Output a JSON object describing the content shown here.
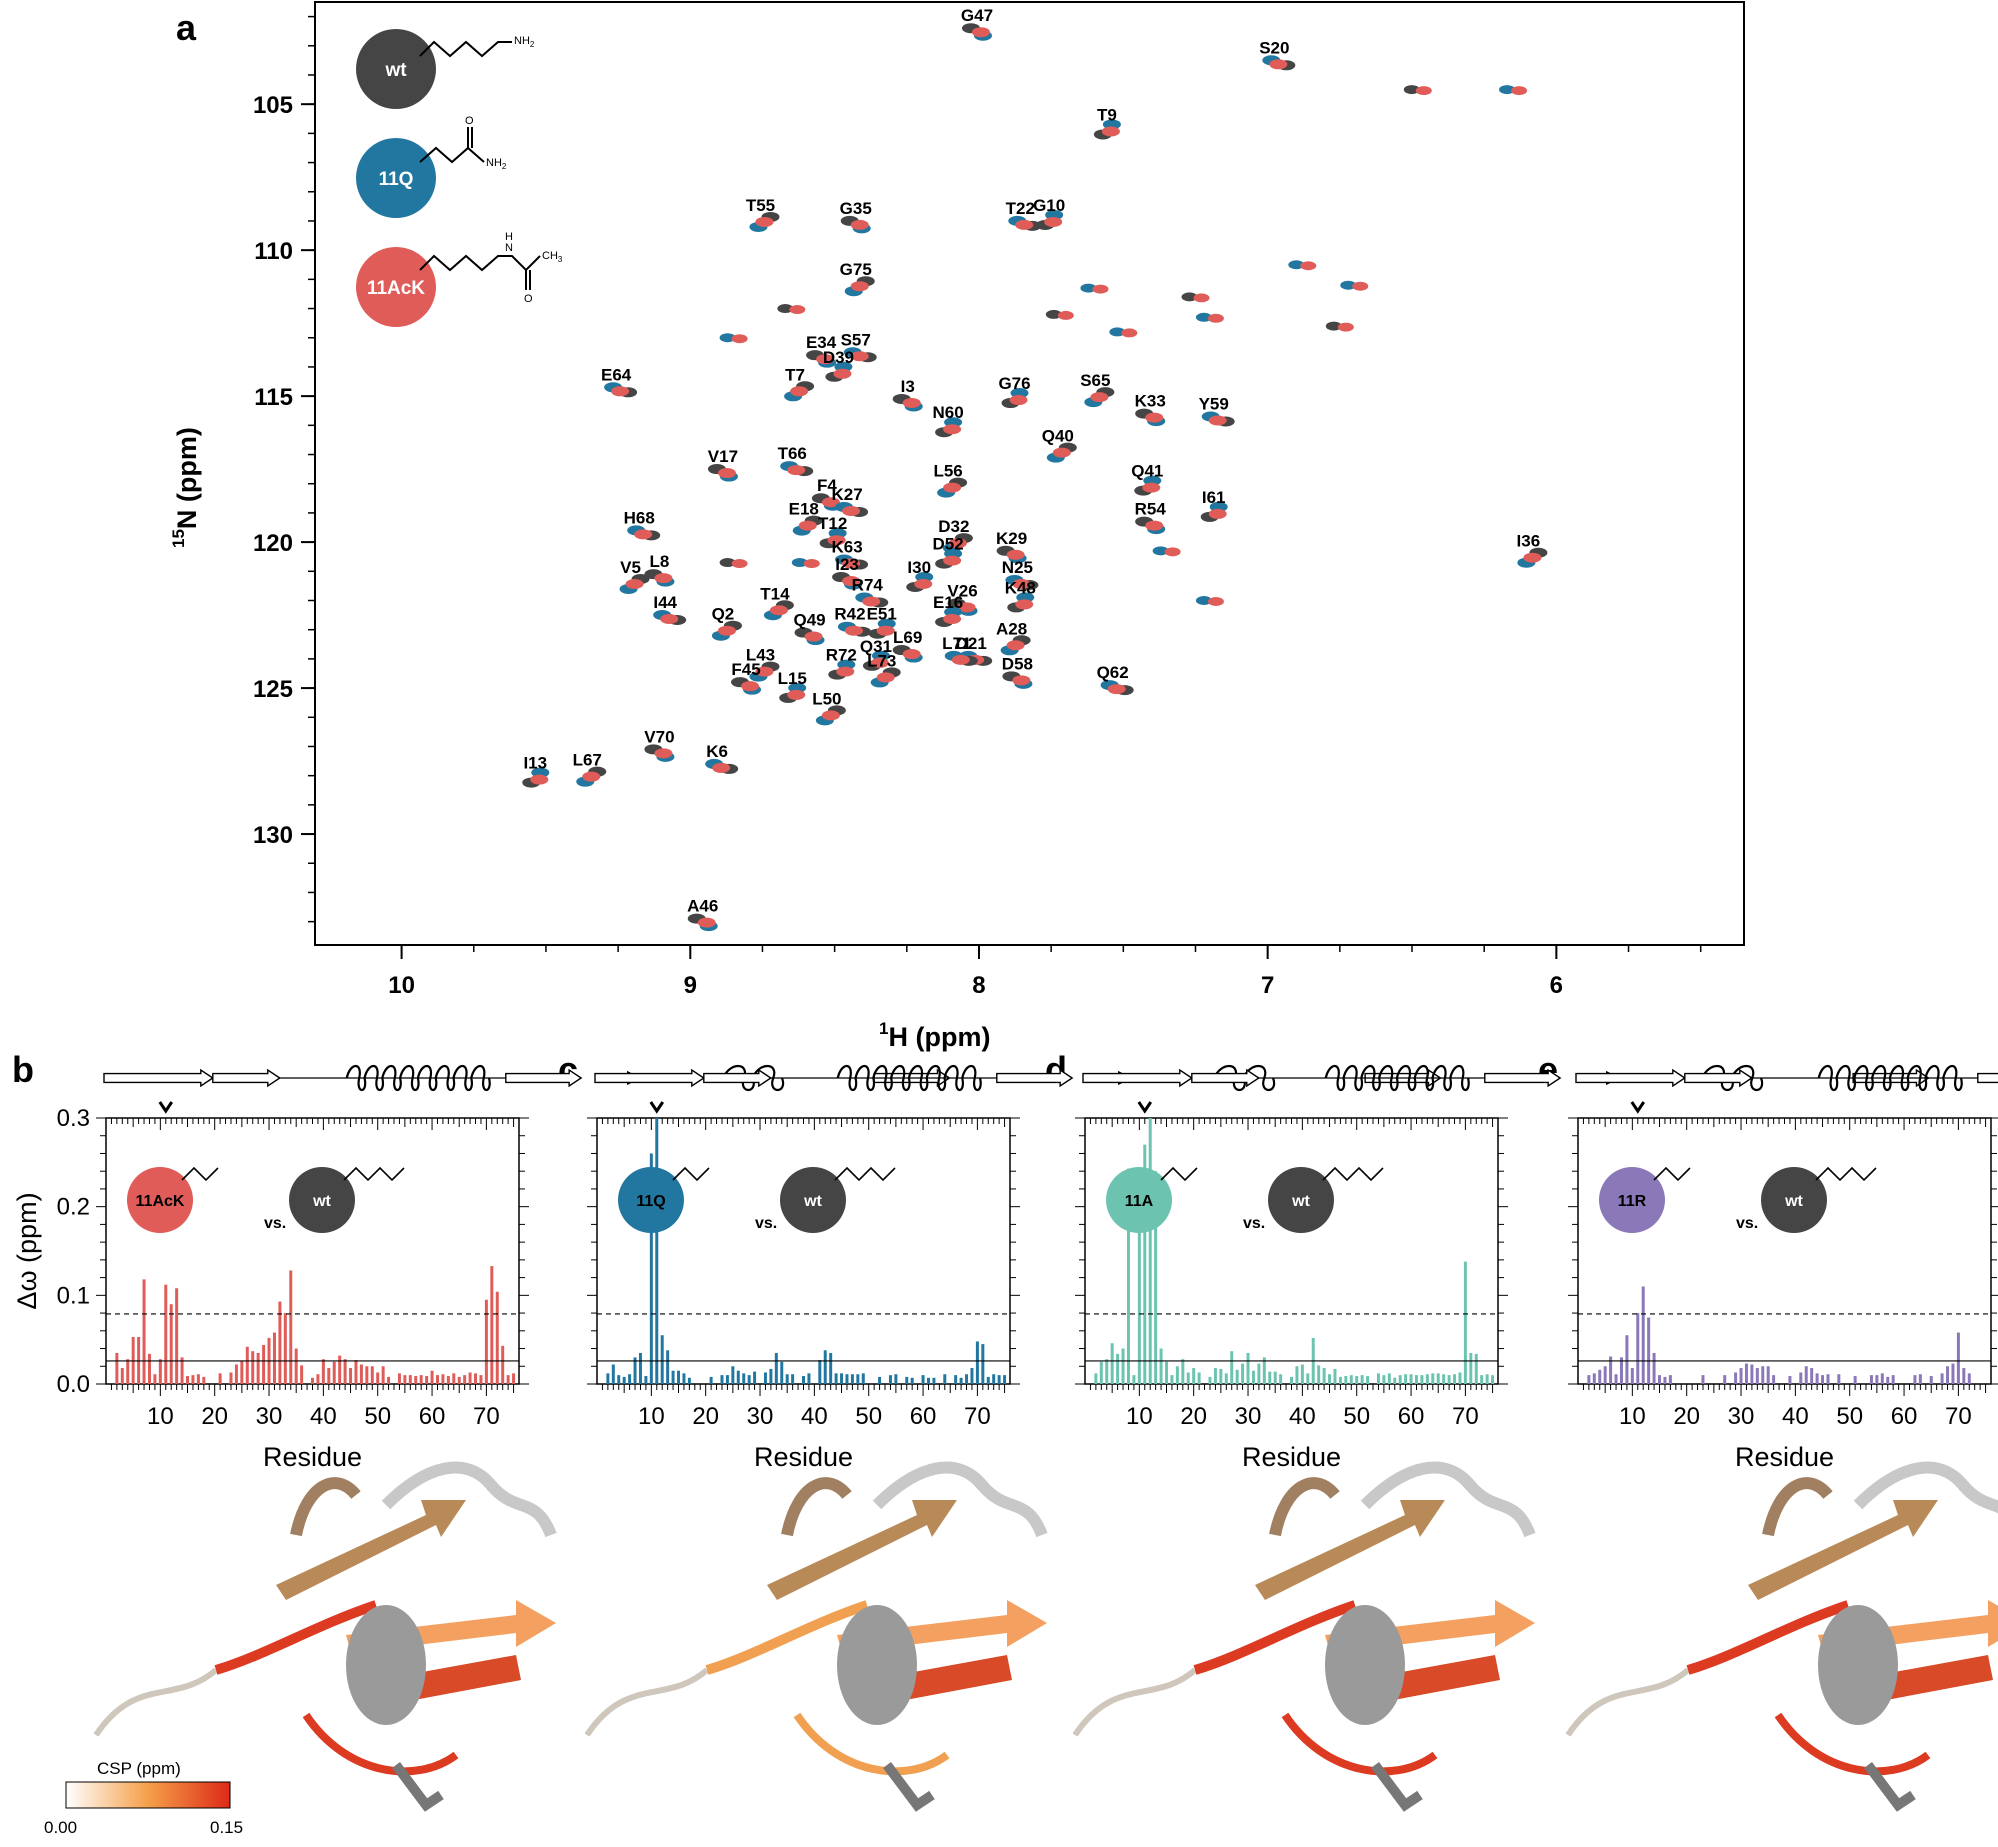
{
  "chart_data": [
    {
      "type": "scatter",
      "panel": "a",
      "xlabel": "1H (ppm)",
      "ylabel": "15N (ppm)",
      "xlim": [
        10.3,
        5.35
      ],
      "ylim": [
        101.5,
        133.8
      ],
      "xticks": [
        "10",
        "9",
        "8",
        "7",
        "6"
      ],
      "yticks": [
        "105",
        "110",
        "115",
        "120",
        "125",
        "130"
      ],
      "series_colors": {
        "wt": "#454545",
        "11Q": "#2277a0",
        "11AcK": "#e05c58"
      },
      "legend": [
        {
          "label": "wt",
          "color": "#454545",
          "struct": "lysine"
        },
        {
          "label": "11Q",
          "color": "#2277a0",
          "struct": "glutamine"
        },
        {
          "label": "11AcK",
          "color": "#e05c58",
          "struct": "acetyl-lysine"
        }
      ],
      "legend_chem": {
        "nh2": "NH",
        "o": "O",
        "h": "H",
        "n": "N",
        "ch3": "CH",
        "two": "2",
        "three": "3"
      },
      "peaks": [
        {
          "label": "G47",
          "h": 8.0,
          "n": 102.5
        },
        {
          "label": "S20",
          "h": 6.97,
          "n": 103.6
        },
        {
          "label": "T9",
          "h": 7.55,
          "n": 105.9
        },
        {
          "label": "T55",
          "h": 8.75,
          "n": 109.0
        },
        {
          "label": "G35",
          "h": 8.42,
          "n": 109.1
        },
        {
          "label": "T22",
          "h": 7.85,
          "n": 109.1
        },
        {
          "label": "G10",
          "h": 7.75,
          "n": 109.0
        },
        {
          "label": "G75",
          "h": 8.42,
          "n": 111.2
        },
        {
          "label": "E34",
          "h": 8.54,
          "n": 113.7
        },
        {
          "label": "S57",
          "h": 8.42,
          "n": 113.6
        },
        {
          "label": "D39",
          "h": 8.48,
          "n": 114.2
        },
        {
          "label": "T7",
          "h": 8.63,
          "n": 114.8
        },
        {
          "label": "I3",
          "h": 8.24,
          "n": 115.2
        },
        {
          "label": "E64",
          "h": 9.25,
          "n": 114.8
        },
        {
          "label": "G76",
          "h": 7.87,
          "n": 115.1
        },
        {
          "label": "S65",
          "h": 7.59,
          "n": 115.0
        },
        {
          "label": "K33",
          "h": 7.4,
          "n": 115.7
        },
        {
          "label": "Y59",
          "h": 7.18,
          "n": 115.8
        },
        {
          "label": "N60",
          "h": 8.1,
          "n": 116.1
        },
        {
          "label": "Q40",
          "h": 7.72,
          "n": 116.9
        },
        {
          "label": "V17",
          "h": 8.88,
          "n": 117.6
        },
        {
          "label": "T66",
          "h": 8.64,
          "n": 117.5
        },
        {
          "label": "Q41",
          "h": 7.41,
          "n": 118.1
        },
        {
          "label": "L56",
          "h": 8.1,
          "n": 118.1
        },
        {
          "label": "F4",
          "h": 8.52,
          "n": 118.6
        },
        {
          "label": "K27",
          "h": 8.45,
          "n": 118.9
        },
        {
          "label": "I61",
          "h": 7.18,
          "n": 119.0
        },
        {
          "label": "E18",
          "h": 8.6,
          "n": 119.4
        },
        {
          "label": "R54",
          "h": 7.4,
          "n": 119.4
        },
        {
          "label": "H68",
          "h": 9.17,
          "n": 119.7
        },
        {
          "label": "T12",
          "h": 8.5,
          "n": 119.9
        },
        {
          "label": "D32",
          "h": 8.08,
          "n": 120.0
        },
        {
          "label": "K29",
          "h": 7.88,
          "n": 120.4
        },
        {
          "label": "K63",
          "h": 8.45,
          "n": 120.7
        },
        {
          "label": "D52",
          "h": 8.1,
          "n": 120.6
        },
        {
          "label": "I36",
          "h": 6.09,
          "n": 120.5
        },
        {
          "label": "L8",
          "h": 9.1,
          "n": 121.2
        },
        {
          "label": "N25",
          "h": 7.86,
          "n": 121.4
        },
        {
          "label": "I30",
          "h": 8.2,
          "n": 121.4
        },
        {
          "label": "V5",
          "h": 9.2,
          "n": 121.4
        },
        {
          "label": "I23",
          "h": 8.45,
          "n": 121.3
        },
        {
          "label": "R74",
          "h": 8.38,
          "n": 122.0
        },
        {
          "label": "K48",
          "h": 7.85,
          "n": 122.1
        },
        {
          "label": "T14",
          "h": 8.7,
          "n": 122.3
        },
        {
          "label": "V26",
          "h": 8.05,
          "n": 122.2
        },
        {
          "label": "I44",
          "h": 9.08,
          "n": 122.6
        },
        {
          "label": "E16",
          "h": 8.1,
          "n": 122.6
        },
        {
          "label": "Q2",
          "h": 8.88,
          "n": 123.0
        },
        {
          "label": "Q49",
          "h": 8.58,
          "n": 123.2
        },
        {
          "label": "R42",
          "h": 8.44,
          "n": 123.0
        },
        {
          "label": "E51",
          "h": 8.33,
          "n": 123.0
        },
        {
          "label": "A28",
          "h": 7.88,
          "n": 123.5
        },
        {
          "label": "L69",
          "h": 8.24,
          "n": 123.8
        },
        {
          "label": "D21",
          "h": 8.02,
          "n": 124.0
        },
        {
          "label": "Q31",
          "h": 8.35,
          "n": 124.1
        },
        {
          "label": "L43",
          "h": 8.75,
          "n": 124.4
        },
        {
          "label": "D58",
          "h": 7.86,
          "n": 124.7
        },
        {
          "label": "L71",
          "h": 8.07,
          "n": 124.0
        },
        {
          "label": "R72",
          "h": 8.47,
          "n": 124.4
        },
        {
          "label": "L73",
          "h": 8.33,
          "n": 124.6
        },
        {
          "label": "F45",
          "h": 8.8,
          "n": 124.9
        },
        {
          "label": "Q62",
          "h": 7.53,
          "n": 125.0
        },
        {
          "label": "L15",
          "h": 8.64,
          "n": 125.2
        },
        {
          "label": "L50",
          "h": 8.52,
          "n": 125.9
        },
        {
          "label": "V70",
          "h": 9.1,
          "n": 127.2
        },
        {
          "label": "K6",
          "h": 8.9,
          "n": 127.7
        },
        {
          "label": "I13",
          "h": 9.53,
          "n": 128.1
        },
        {
          "label": "L67",
          "h": 9.35,
          "n": 128.0
        },
        {
          "label": "A46",
          "h": 8.95,
          "n": 133.0
        }
      ]
    },
    {
      "type": "bar",
      "panel": "b",
      "color": "#e05c58",
      "mutant": "11AcK",
      "reference": "wt",
      "vs": "vs.",
      "xlabel": "Residue",
      "ylabel": "Δω (ppm)",
      "xlim": [
        0,
        76
      ],
      "ylim": [
        0,
        0.3
      ],
      "xticks": [
        "10",
        "20",
        "30",
        "40",
        "50",
        "60",
        "70"
      ],
      "yticks": [
        "0.0",
        "0.1",
        "0.2",
        "0.3"
      ],
      "thresholds": {
        "solid": 0.026,
        "dashed": 0.079
      },
      "marker_residue": 11,
      "residues": [
        2,
        3,
        4,
        5,
        6,
        7,
        8,
        9,
        10,
        11,
        12,
        13,
        14,
        15,
        16,
        17,
        18,
        21,
        23,
        24,
        25,
        26,
        27,
        28,
        29,
        30,
        31,
        32,
        33,
        34,
        35,
        36,
        38,
        39,
        40,
        41,
        42,
        43,
        44,
        45,
        46,
        47,
        48,
        49,
        50,
        51,
        52,
        54,
        55,
        56,
        57,
        58,
        59,
        60,
        61,
        62,
        63,
        64,
        65,
        66,
        67,
        68,
        69,
        70,
        71,
        72,
        73,
        74,
        75
      ],
      "values": [
        0.035,
        0.018,
        0.028,
        0.053,
        0.053,
        0.118,
        0.034,
        0.011,
        0.028,
        0.112,
        0.09,
        0.108,
        0.03,
        0.009,
        0.01,
        0.011,
        0.008,
        0.012,
        0.013,
        0.022,
        0.026,
        0.042,
        0.037,
        0.035,
        0.044,
        0.052,
        0.058,
        0.093,
        0.08,
        0.128,
        0.04,
        0.021,
        0.007,
        0.011,
        0.028,
        0.018,
        0.025,
        0.032,
        0.028,
        0.018,
        0.027,
        0.022,
        0.02,
        0.02,
        0.013,
        0.02,
        0.008,
        0.012,
        0.01,
        0.01,
        0.009,
        0.01,
        0.009,
        0.015,
        0.01,
        0.011,
        0.009,
        0.012,
        0.008,
        0.01,
        0.013,
        0.012,
        0.01,
        0.095,
        0.133,
        0.104,
        0.043,
        0.01,
        0.012
      ]
    },
    {
      "type": "bar",
      "panel": "c",
      "color": "#2277a0",
      "mutant": "11Q",
      "reference": "wt",
      "vs": "vs.",
      "xlabel": "Residue",
      "ylabel": "Δω (ppm)",
      "xlim": [
        0,
        76
      ],
      "ylim": [
        0,
        0.3
      ],
      "xticks": [
        "10",
        "20",
        "30",
        "40",
        "50",
        "60",
        "70"
      ],
      "yticks": [
        "0.0",
        "0.1",
        "0.2",
        "0.3"
      ],
      "thresholds": {
        "solid": 0.026,
        "dashed": 0.079
      },
      "marker_residue": 11,
      "residues": [
        2,
        3,
        4,
        5,
        6,
        7,
        8,
        9,
        10,
        11,
        12,
        13,
        14,
        15,
        16,
        17,
        21,
        23,
        24,
        25,
        26,
        27,
        28,
        29,
        31,
        32,
        33,
        34,
        35,
        36,
        38,
        39,
        41,
        42,
        43,
        44,
        45,
        46,
        47,
        48,
        49,
        52,
        54,
        55,
        57,
        58,
        60,
        61,
        62,
        64,
        66,
        67,
        68,
        69,
        70,
        71,
        72,
        73,
        74,
        75
      ],
      "values": [
        0.012,
        0.022,
        0.01,
        0.008,
        0.011,
        0.03,
        0.035,
        0.009,
        0.26,
        0.3,
        0.055,
        0.038,
        0.015,
        0.015,
        0.012,
        0.007,
        0.008,
        0.01,
        0.01,
        0.02,
        0.015,
        0.012,
        0.01,
        0.014,
        0.013,
        0.017,
        0.035,
        0.025,
        0.011,
        0.011,
        0.009,
        0.012,
        0.027,
        0.038,
        0.035,
        0.012,
        0.012,
        0.011,
        0.011,
        0.011,
        0.012,
        0.008,
        0.01,
        0.011,
        0.008,
        0.007,
        0.01,
        0.007,
        0.007,
        0.011,
        0.01,
        0.007,
        0.011,
        0.018,
        0.048,
        0.045,
        0.008,
        0.011,
        0.01,
        0.01
      ]
    },
    {
      "type": "bar",
      "panel": "d",
      "color": "#6cc4b0",
      "mutant": "11A",
      "reference": "wt",
      "vs": "vs.",
      "xlabel": "Residue",
      "ylabel": "Δω (ppm)",
      "xlim": [
        0,
        76
      ],
      "ylim": [
        0,
        0.3
      ],
      "xticks": [
        "10",
        "20",
        "30",
        "40",
        "50",
        "60",
        "70"
      ],
      "yticks": [
        "0.0",
        "0.1",
        "0.2",
        "0.3"
      ],
      "thresholds": {
        "solid": 0.026,
        "dashed": 0.079
      },
      "marker_residue": 11,
      "residues": [
        2,
        3,
        4,
        5,
        6,
        7,
        8,
        9,
        10,
        11,
        12,
        13,
        14,
        15,
        16,
        17,
        18,
        19,
        20,
        21,
        23,
        24,
        25,
        26,
        27,
        28,
        29,
        30,
        31,
        32,
        33,
        34,
        35,
        36,
        38,
        39,
        40,
        41,
        42,
        43,
        44,
        45,
        46,
        47,
        48,
        49,
        50,
        51,
        52,
        54,
        55,
        56,
        57,
        58,
        59,
        60,
        61,
        62,
        63,
        64,
        65,
        66,
        67,
        68,
        69,
        70,
        71,
        72,
        73,
        74,
        75
      ],
      "values": [
        0.012,
        0.025,
        0.028,
        0.046,
        0.034,
        0.04,
        0.243,
        0.01,
        0.2,
        0.27,
        0.3,
        0.24,
        0.04,
        0.025,
        0.01,
        0.02,
        0.028,
        0.013,
        0.018,
        0.013,
        0.008,
        0.018,
        0.017,
        0.012,
        0.037,
        0.016,
        0.023,
        0.035,
        0.015,
        0.023,
        0.03,
        0.014,
        0.014,
        0.011,
        0.008,
        0.02,
        0.022,
        0.012,
        0.052,
        0.021,
        0.018,
        0.011,
        0.017,
        0.008,
        0.009,
        0.01,
        0.009,
        0.01,
        0.009,
        0.012,
        0.01,
        0.012,
        0.007,
        0.01,
        0.011,
        0.011,
        0.01,
        0.01,
        0.011,
        0.012,
        0.012,
        0.011,
        0.01,
        0.011,
        0.013,
        0.138,
        0.035,
        0.034,
        0.01,
        0.011,
        0.01
      ]
    },
    {
      "type": "bar",
      "panel": "e",
      "color": "#8a78b8",
      "mutant": "11R",
      "reference": "wt",
      "vs": "vs.",
      "xlabel": "Residue",
      "ylabel": "Δω (ppm)",
      "xlim": [
        0,
        76
      ],
      "ylim": [
        0,
        0.3
      ],
      "xticks": [
        "10",
        "20",
        "30",
        "40",
        "50",
        "60",
        "70"
      ],
      "yticks": [
        "0.0",
        "0.1",
        "0.2",
        "0.3"
      ],
      "thresholds": {
        "solid": 0.026,
        "dashed": 0.079
      },
      "marker_residue": 11,
      "residues": [
        2,
        3,
        4,
        5,
        6,
        7,
        8,
        9,
        10,
        11,
        12,
        13,
        14,
        15,
        16,
        17,
        23,
        27,
        29,
        30,
        31,
        32,
        33,
        34,
        35,
        36,
        39,
        41,
        42,
        43,
        44,
        45,
        46,
        48,
        51,
        54,
        55,
        56,
        57,
        58,
        62,
        63,
        65,
        67,
        68,
        69,
        70,
        71,
        72
      ],
      "values": [
        0.01,
        0.012,
        0.016,
        0.02,
        0.031,
        0.011,
        0.03,
        0.055,
        0.018,
        0.08,
        0.11,
        0.075,
        0.035,
        0.01,
        0.008,
        0.01,
        0.01,
        0.01,
        0.013,
        0.018,
        0.023,
        0.022,
        0.018,
        0.02,
        0.02,
        0.01,
        0.009,
        0.013,
        0.02,
        0.018,
        0.012,
        0.01,
        0.011,
        0.011,
        0.009,
        0.01,
        0.01,
        0.012,
        0.008,
        0.01,
        0.01,
        0.011,
        0.009,
        0.012,
        0.02,
        0.023,
        0.058,
        0.018,
        0.012
      ]
    }
  ],
  "labels": {
    "panel_a": "a",
    "panel_b": "b",
    "panel_c": "c",
    "panel_d": "d",
    "panel_e": "e",
    "x_axis_superscript": "1",
    "x_axis_main": "H (ppm)",
    "y_axis_superscript": "15",
    "y_axis_main": "N (ppm)",
    "colorbar_title": "CSP (ppm)",
    "colorbar_min": "0.00",
    "colorbar_max": "0.15"
  },
  "colors": {
    "colorbar_low": "#ffffff",
    "colorbar_mid": "#f5a04a",
    "colorbar_high": "#dd2a18"
  }
}
